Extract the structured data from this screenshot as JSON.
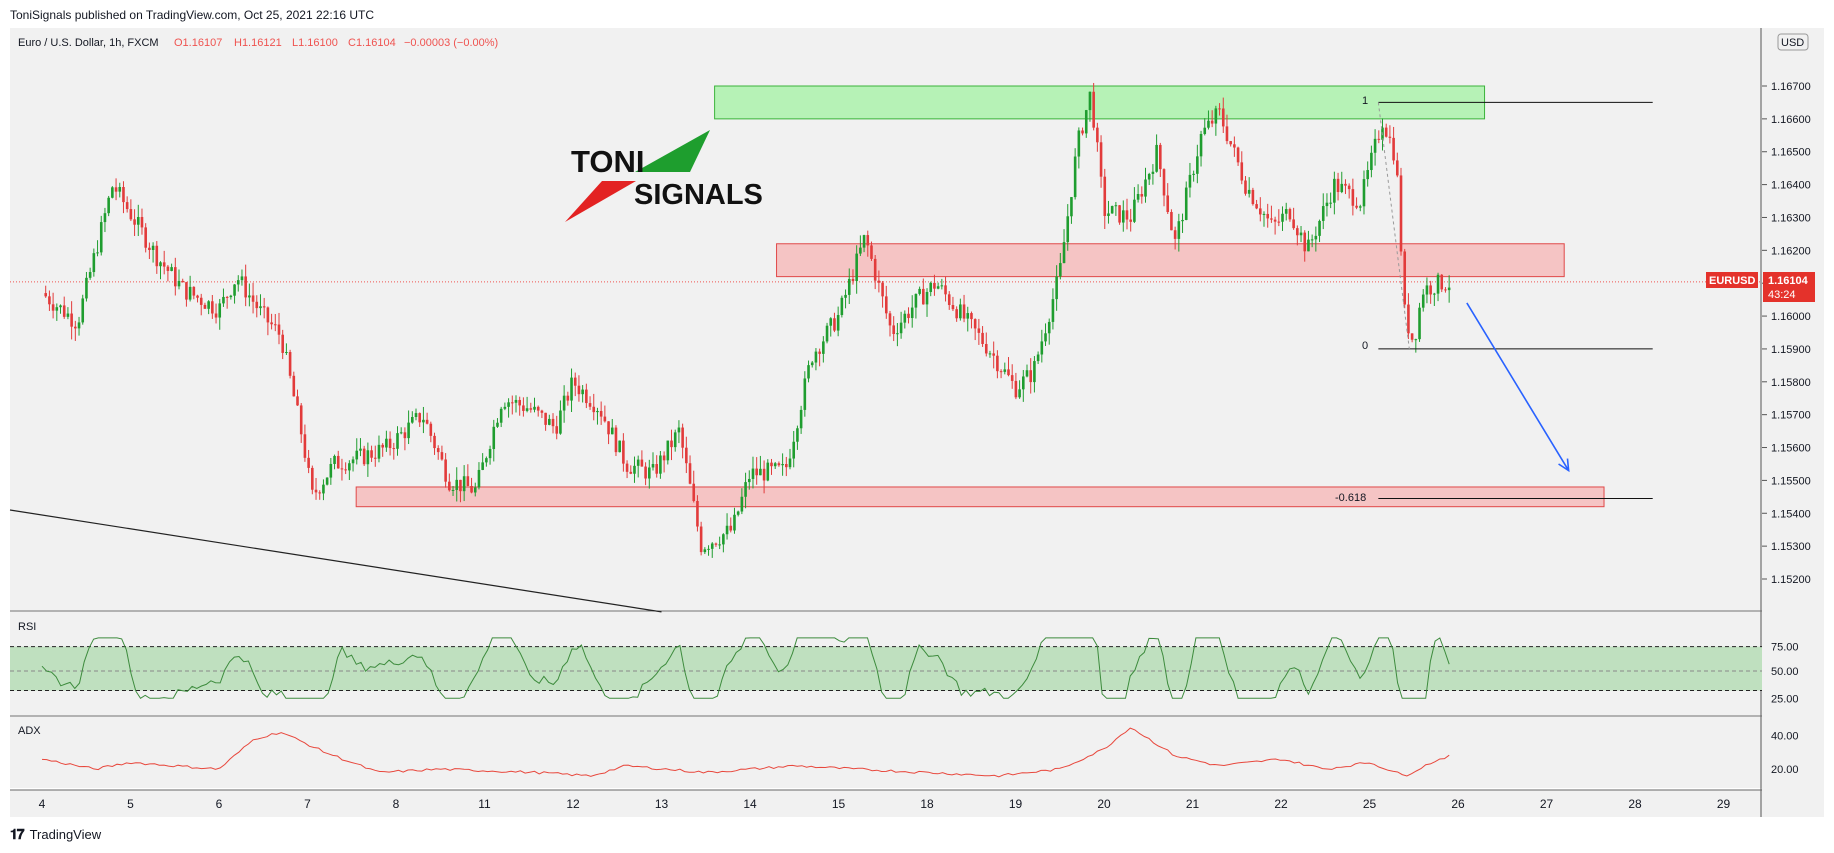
{
  "header": {
    "published": "ToniSignals published on TradingView.com, Oct 25, 2021 22:16 UTC"
  },
  "legend": {
    "symbol": "Euro / U.S. Dollar, 1h, FXCM",
    "open": "O1.16107",
    "high": "H1.16121",
    "low": "L1.16100",
    "close": "C1.16104",
    "change": "−0.00003 (−0.00%)"
  },
  "logo": {
    "line1": "TONI",
    "line2": "SIGNALS"
  },
  "currency": "USD",
  "price_tag": {
    "symbol": "EURUSD",
    "price": "1.16104",
    "countdown": "43:24"
  },
  "panes": {
    "rsi_label": "RSI",
    "adx_label": "ADX"
  },
  "fib": {
    "level_1": "1",
    "level_0": "0",
    "level_ext": "-0.618"
  },
  "footer": {
    "brand": "TradingView"
  },
  "colors": {
    "up": "#26a69a",
    "down": "#ef5350",
    "candle_up": "#1f9d2f",
    "candle_down": "#e23b3b",
    "resistance_fill": "#b6f2b6",
    "support_fill": "#f5c4c4",
    "rsi_band": "#bfe0bf",
    "arrow": "#2962ff",
    "adx_line": "#e8473c",
    "rsi_line": "#3d8b3d"
  },
  "chart_data": [
    {
      "type": "candlestick",
      "title": "Euro / U.S. Dollar, 1h, FXCM",
      "y_ticks": [
        "1.16700",
        "1.16600",
        "1.16500",
        "1.16400",
        "1.16300",
        "1.16200",
        "1.16100",
        "1.16000",
        "1.15900",
        "1.15800",
        "1.15700",
        "1.15600",
        "1.15500",
        "1.15400",
        "1.15300",
        "1.15200"
      ],
      "ylim": [
        1.151,
        1.1678
      ],
      "x_ticks": [
        "4",
        "5",
        "6",
        "7",
        "8",
        "11",
        "12",
        "13",
        "14",
        "15",
        "18",
        "19",
        "20",
        "21",
        "22",
        "25",
        "26",
        "27",
        "28",
        "29"
      ],
      "close_path": [
        [
          0,
          1.1607
        ],
        [
          0.4,
          1.1598
        ],
        [
          0.8,
          1.164
        ],
        [
          1.3,
          1.1618
        ],
        [
          1.6,
          1.1608
        ],
        [
          2.0,
          1.1602
        ],
        [
          2.2,
          1.1612
        ],
        [
          2.5,
          1.16
        ],
        [
          2.7,
          1.1594
        ],
        [
          2.95,
          1.1562
        ],
        [
          3.05,
          1.1545
        ],
        [
          3.3,
          1.1555
        ],
        [
          3.6,
          1.1557
        ],
        [
          3.9,
          1.156
        ],
        [
          4.3,
          1.157
        ],
        [
          4.6,
          1.155
        ],
        [
          4.9,
          1.1547
        ],
        [
          5.2,
          1.1575
        ],
        [
          5.5,
          1.1572
        ],
        [
          5.8,
          1.1566
        ],
        [
          6.0,
          1.158
        ],
        [
          6.3,
          1.1572
        ],
        [
          6.6,
          1.1555
        ],
        [
          6.9,
          1.1552
        ],
        [
          7.2,
          1.1565
        ],
        [
          7.45,
          1.153
        ],
        [
          7.8,
          1.1535
        ],
        [
          8.0,
          1.1552
        ],
        [
          8.4,
          1.1553
        ],
        [
          8.7,
          1.1588
        ],
        [
          9.0,
          1.16
        ],
        [
          9.3,
          1.1624
        ],
        [
          9.6,
          1.1595
        ],
        [
          9.9,
          1.1605
        ],
        [
          10.1,
          1.161
        ],
        [
          10.4,
          1.16
        ],
        [
          10.7,
          1.159
        ],
        [
          11.0,
          1.1578
        ],
        [
          11.2,
          1.1583
        ],
        [
          11.5,
          1.1613
        ],
        [
          11.7,
          1.1652
        ],
        [
          11.85,
          1.1668
        ],
        [
          12.0,
          1.1632
        ],
        [
          12.3,
          1.163
        ],
        [
          12.6,
          1.165
        ],
        [
          12.8,
          1.1622
        ],
        [
          13.1,
          1.1655
        ],
        [
          13.3,
          1.1662
        ],
        [
          13.6,
          1.164
        ],
        [
          13.9,
          1.1627
        ],
        [
          14.1,
          1.1632
        ],
        [
          14.3,
          1.162
        ],
        [
          14.6,
          1.164
        ],
        [
          14.9,
          1.1635
        ],
        [
          15.0,
          1.1645
        ],
        [
          15.15,
          1.166
        ],
        [
          15.3,
          1.1648
        ],
        [
          15.4,
          1.16
        ],
        [
          15.5,
          1.1592
        ],
        [
          15.6,
          1.1608
        ],
        [
          15.8,
          1.161
        ],
        [
          15.9,
          1.161
        ]
      ],
      "annotations": [
        {
          "kind": "zone",
          "label": "resistance",
          "y": [
            1.166,
            1.167
          ],
          "x": [
            7.6,
            16.3
          ]
        },
        {
          "kind": "zone",
          "label": "mid",
          "y": [
            1.1612,
            1.1622
          ],
          "x": [
            8.3,
            17.2
          ]
        },
        {
          "kind": "zone",
          "label": "support",
          "y": [
            1.1542,
            1.1548
          ],
          "x": [
            3.55,
            17.65
          ]
        },
        {
          "kind": "fib",
          "levels": {
            "1": 1.1665,
            "0": 1.159,
            "-0.618": 1.15445
          },
          "x": [
            15.1,
            18.2
          ]
        },
        {
          "kind": "arrow",
          "from": [
            16.1,
            1.1604
          ],
          "to": [
            17.25,
            1.1553
          ]
        },
        {
          "kind": "trendline",
          "from": [
            0,
            1.1541
          ],
          "to": [
            7.0,
            1.151
          ]
        }
      ]
    },
    {
      "type": "line",
      "title": "RSI",
      "y_ticks": [
        "75.00",
        "50.00",
        "25.00"
      ],
      "ylim": [
        10,
        90
      ],
      "band": [
        30,
        70
      ]
    },
    {
      "type": "line",
      "title": "ADX",
      "y_ticks": [
        "40.00",
        "20.00"
      ],
      "ylim": [
        10,
        48
      ]
    }
  ]
}
